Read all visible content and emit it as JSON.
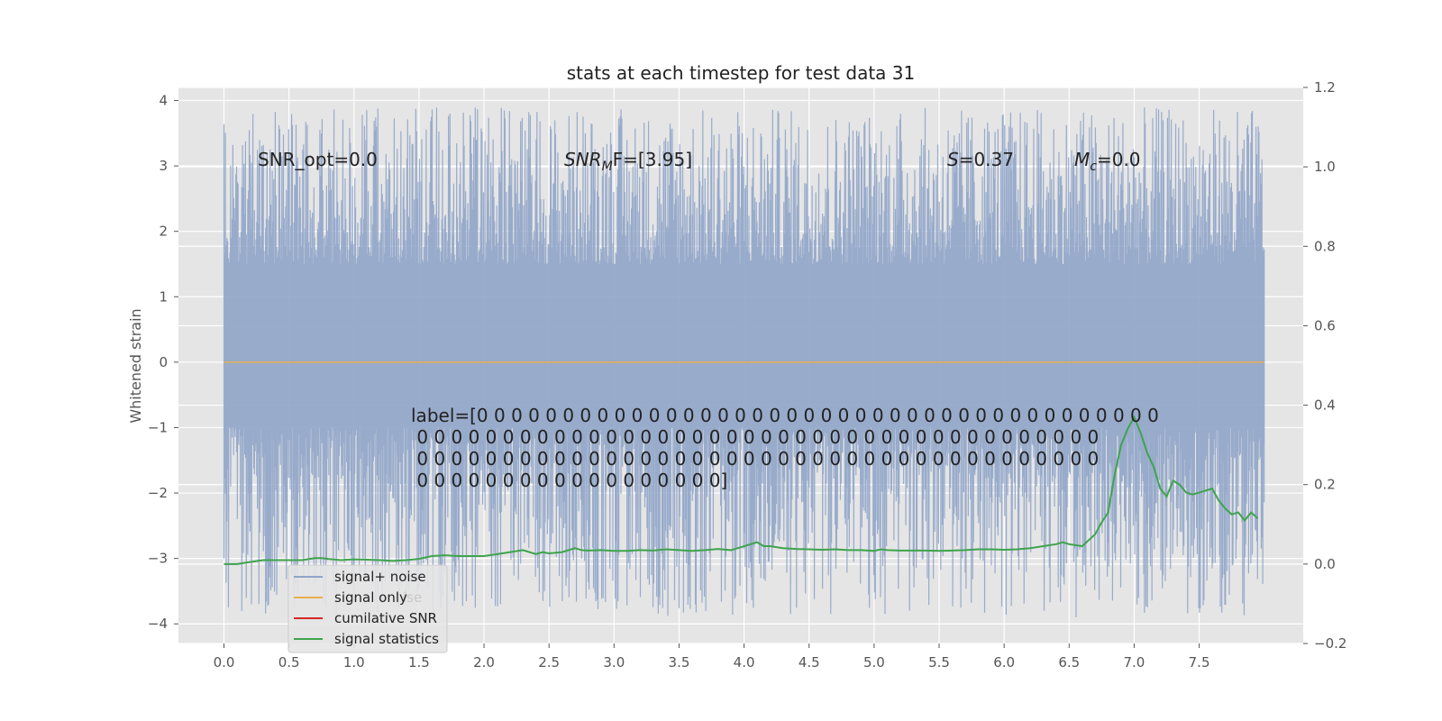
{
  "chart_data": {
    "type": "line",
    "title": "stats at each timestep for test data 31",
    "ylabel": "Whitened strain",
    "xlabel": "",
    "xlim": [
      -0.35,
      8.3
    ],
    "ylim": [
      -4.3,
      4.2
    ],
    "y2lim": [
      -0.2,
      1.2
    ],
    "x_ticks": [
      "0.0",
      "0.5",
      "1.0",
      "1.5",
      "2.0",
      "2.5",
      "3.0",
      "3.5",
      "4.0",
      "4.5",
      "5.0",
      "5.5",
      "6.0",
      "6.5",
      "7.0",
      "7.5"
    ],
    "y_ticks": [
      "4",
      "3",
      "2",
      "1",
      "0",
      "−1",
      "−2",
      "−3",
      "−4"
    ],
    "y2_ticks": [
      "1.2",
      "1.0",
      "0.8",
      "0.6",
      "0.4",
      "0.2",
      "0.0",
      "−0.2"
    ],
    "grid": true,
    "legend_position": "lower-left",
    "series": [
      {
        "name": "signal+ noise",
        "color": "#8fa4c8",
        "axis": "left",
        "x_range": [
          0.0,
          8.0
        ],
        "upper_range": [
          1.5,
          3.9
        ],
        "lower_range": [
          -3.9,
          -1.0
        ],
        "note": "dense noise band; highest peak near x=7.3 (~3.85), lowest near x=4.55 (~-3.9)"
      },
      {
        "name": "signal only",
        "color": "#e8b04c",
        "axis": "left",
        "x": [
          0.0,
          8.0
        ],
        "y": [
          0.0,
          0.0
        ]
      },
      {
        "name": "cumilative SNR",
        "color": "#d62728",
        "axis": "right",
        "x": [],
        "y": []
      },
      {
        "name": "signal statistics",
        "color": "#3fa34d",
        "axis": "right",
        "x": [
          0.0,
          0.1,
          0.2,
          0.3,
          0.4,
          0.5,
          0.6,
          0.7,
          0.75,
          0.8,
          0.9,
          1.0,
          1.1,
          1.2,
          1.3,
          1.4,
          1.5,
          1.6,
          1.7,
          1.8,
          1.9,
          2.0,
          2.1,
          2.2,
          2.3,
          2.4,
          2.45,
          2.5,
          2.6,
          2.7,
          2.75,
          2.8,
          2.9,
          3.0,
          3.1,
          3.2,
          3.3,
          3.4,
          3.5,
          3.6,
          3.7,
          3.8,
          3.9,
          4.0,
          4.1,
          4.15,
          4.2,
          4.3,
          4.4,
          4.5,
          4.6,
          4.7,
          4.8,
          4.9,
          5.0,
          5.05,
          5.1,
          5.2,
          5.3,
          5.4,
          5.5,
          5.6,
          5.7,
          5.8,
          5.9,
          6.0,
          6.1,
          6.2,
          6.3,
          6.4,
          6.45,
          6.5,
          6.6,
          6.7,
          6.75,
          6.8,
          6.85,
          6.9,
          6.95,
          7.0,
          7.05,
          7.1,
          7.15,
          7.2,
          7.25,
          7.3,
          7.35,
          7.4,
          7.45,
          7.5,
          7.55,
          7.6,
          7.65,
          7.7,
          7.75,
          7.8,
          7.85,
          7.9,
          7.95
        ],
        "y": [
          0.0,
          0.0,
          0.005,
          0.01,
          0.01,
          0.01,
          0.01,
          0.015,
          0.015,
          0.013,
          0.01,
          0.012,
          0.011,
          0.01,
          0.008,
          0.01,
          0.013,
          0.02,
          0.022,
          0.02,
          0.02,
          0.02,
          0.025,
          0.03,
          0.035,
          0.025,
          0.03,
          0.027,
          0.03,
          0.04,
          0.035,
          0.034,
          0.035,
          0.033,
          0.033,
          0.035,
          0.034,
          0.037,
          0.035,
          0.033,
          0.035,
          0.038,
          0.035,
          0.045,
          0.055,
          0.045,
          0.045,
          0.04,
          0.038,
          0.037,
          0.036,
          0.037,
          0.035,
          0.035,
          0.033,
          0.037,
          0.035,
          0.034,
          0.034,
          0.034,
          0.033,
          0.034,
          0.035,
          0.037,
          0.037,
          0.036,
          0.037,
          0.04,
          0.045,
          0.05,
          0.055,
          0.05,
          0.045,
          0.075,
          0.105,
          0.13,
          0.225,
          0.3,
          0.34,
          0.37,
          0.33,
          0.28,
          0.245,
          0.19,
          0.17,
          0.21,
          0.2,
          0.18,
          0.175,
          0.18,
          0.185,
          0.19,
          0.16,
          0.14,
          0.125,
          0.13,
          0.11,
          0.13,
          0.115
        ]
      }
    ],
    "annotations": {
      "snr_opt": "SNR_opt=0.0",
      "snr_mf_base": "SNR",
      "snr_mf_sub": "M",
      "snr_mf_rest": "F=[3.95]",
      "s_val_base": "S",
      "s_val_rest": "=0.37",
      "mc_base": "M",
      "mc_sub": "c",
      "mc_rest": "=0.0",
      "label_lines": [
        "label=[0 0 0 0 0 0 0 0 0 0 0 0 0 0 0 0 0 0 0 0 0 0 0 0 0 0 0 0 0 0 0 0 0 0 0 0 0 0 0 0",
        " 0 0 0 0 0 0 0 0 0 0 0 0 0 0 0 0 0 0 0 0 0 0 0 0 0 0 0 0 0 0 0 0 0 0 0 0 0 0 0 0",
        " 0 0 0 0 0 0 0 0 0 0 0 0 0 0 0 0 0 0 0 0 0 0 0 0 0 0 0 0 0 0 0 0 0 0 0 0 0 0 0 0",
        " 0 0 0 0 0 0 0 0 0 0 0 0 0 0 0 0 0 0]"
      ]
    },
    "legend_ghost_labels": [
      "ise",
      "se"
    ]
  }
}
